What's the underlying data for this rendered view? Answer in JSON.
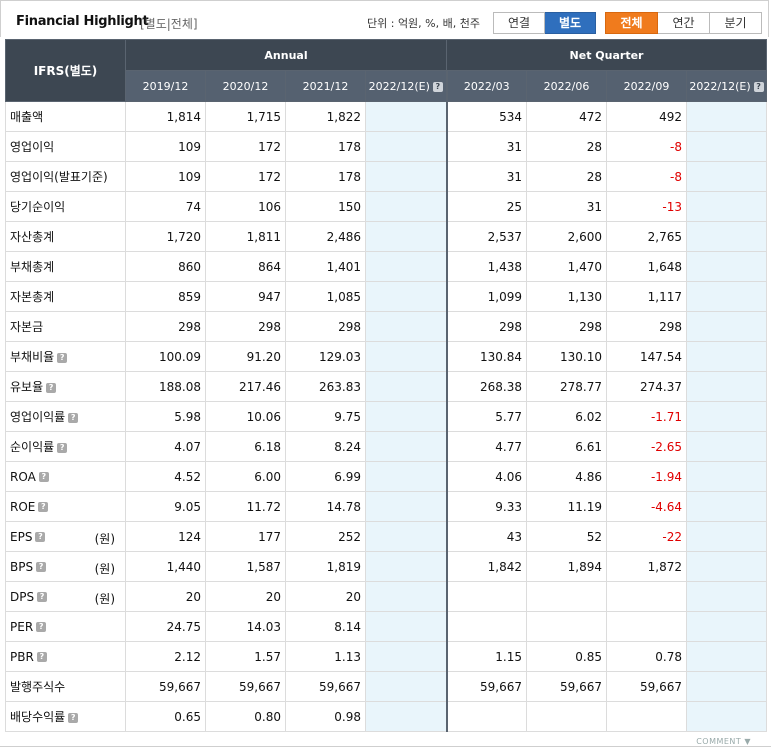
{
  "header": {
    "title": "Financial Highlight",
    "subtitle": "[별도|전체]",
    "unit": "단위 : 억원, %, 배, 천주",
    "group1": [
      "연결",
      "별도"
    ],
    "group2": [
      "전체",
      "연간",
      "분기"
    ]
  },
  "table": {
    "corner": "IFRS(별도)",
    "annual_label": "Annual",
    "quarter_label": "Net Quarter",
    "columns": [
      "2019/12",
      "2020/12",
      "2021/12",
      "2022/12(E)",
      "2022/03",
      "2022/06",
      "2022/09",
      "2022/12(E)"
    ],
    "rows": [
      {
        "label": "매출액",
        "vals": [
          "1,814",
          "1,715",
          "1,822",
          "",
          "534",
          "472",
          "492",
          ""
        ]
      },
      {
        "label": "영업이익",
        "vals": [
          "109",
          "172",
          "178",
          "",
          "31",
          "28",
          "-8",
          ""
        ]
      },
      {
        "label": "영업이익(발표기준)",
        "vals": [
          "109",
          "172",
          "178",
          "",
          "31",
          "28",
          "-8",
          ""
        ]
      },
      {
        "label": "당기순이익",
        "vals": [
          "74",
          "106",
          "150",
          "",
          "25",
          "31",
          "-13",
          ""
        ]
      },
      {
        "label": "자산총계",
        "vals": [
          "1,720",
          "1,811",
          "2,486",
          "",
          "2,537",
          "2,600",
          "2,765",
          ""
        ]
      },
      {
        "label": "부채총계",
        "vals": [
          "860",
          "864",
          "1,401",
          "",
          "1,438",
          "1,470",
          "1,648",
          ""
        ]
      },
      {
        "label": "자본총계",
        "vals": [
          "859",
          "947",
          "1,085",
          "",
          "1,099",
          "1,130",
          "1,117",
          ""
        ]
      },
      {
        "label": "자본금",
        "vals": [
          "298",
          "298",
          "298",
          "",
          "298",
          "298",
          "298",
          ""
        ]
      },
      {
        "label": "부채비율",
        "help": "?",
        "vals": [
          "100.09",
          "91.20",
          "129.03",
          "",
          "130.84",
          "130.10",
          "147.54",
          ""
        ]
      },
      {
        "label": "유보율",
        "help": "?",
        "vals": [
          "188.08",
          "217.46",
          "263.83",
          "",
          "268.38",
          "278.77",
          "274.37",
          ""
        ]
      },
      {
        "label": "영업이익률",
        "help": "?",
        "vals": [
          "5.98",
          "10.06",
          "9.75",
          "",
          "5.77",
          "6.02",
          "-1.71",
          ""
        ]
      },
      {
        "label": "순이익률",
        "help": "?",
        "vals": [
          "4.07",
          "6.18",
          "8.24",
          "",
          "4.77",
          "6.61",
          "-2.65",
          ""
        ]
      },
      {
        "label": "ROA",
        "help": "?",
        "vals": [
          "4.52",
          "6.00",
          "6.99",
          "",
          "4.06",
          "4.86",
          "-1.94",
          ""
        ]
      },
      {
        "label": "ROE",
        "help": "?",
        "vals": [
          "9.05",
          "11.72",
          "14.78",
          "",
          "9.33",
          "11.19",
          "-4.64",
          ""
        ]
      },
      {
        "label": "EPS",
        "help": "?",
        "unit": "(원)",
        "vals": [
          "124",
          "177",
          "252",
          "",
          "43",
          "52",
          "-22",
          ""
        ]
      },
      {
        "label": "BPS",
        "help": "?",
        "unit": "(원)",
        "vals": [
          "1,440",
          "1,587",
          "1,819",
          "",
          "1,842",
          "1,894",
          "1,872",
          ""
        ]
      },
      {
        "label": "DPS",
        "help": "?",
        "unit": "(원)",
        "vals": [
          "20",
          "20",
          "20",
          "",
          "",
          "",
          "",
          ""
        ]
      },
      {
        "label": "PER",
        "help": "?",
        "vals": [
          "24.75",
          "14.03",
          "8.14",
          "",
          "",
          "",
          "",
          ""
        ]
      },
      {
        "label": "PBR",
        "help": "?",
        "vals": [
          "2.12",
          "1.57",
          "1.13",
          "",
          "1.15",
          "0.85",
          "0.78",
          ""
        ]
      },
      {
        "label": "발행주식수",
        "vals": [
          "59,667",
          "59,667",
          "59,667",
          "",
          "59,667",
          "59,667",
          "59,667",
          ""
        ]
      },
      {
        "label": "배당수익률",
        "help": "?",
        "vals": [
          "0.65",
          "0.80",
          "0.98",
          "",
          "",
          "",
          "",
          ""
        ]
      }
    ]
  },
  "footer": {
    "comment": "COMMENT ▼"
  },
  "colors": {
    "header_bg": "#3d4752",
    "estimate_bg": "#e9f5fb",
    "negative": "#e00000",
    "btn_blue": "#2f6fbd",
    "btn_orange": "#f07b1d"
  }
}
